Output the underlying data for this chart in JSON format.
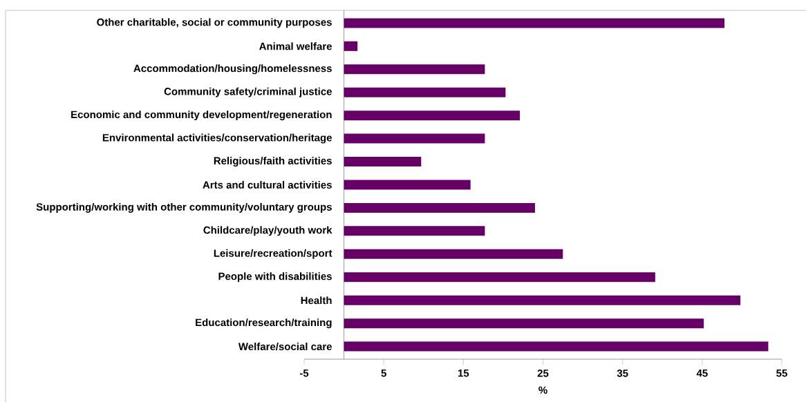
{
  "chart_data": {
    "type": "bar",
    "orientation": "horizontal",
    "xlabel": "%",
    "categories": [
      "Other charitable, social or community purposes",
      "Animal welfare",
      "Accommodation/housing/homelessness",
      "Community safety/criminal justice",
      "Economic and community development/regeneration",
      "Environmental activities/conservation/heritage",
      "Religious/faith activities",
      "Arts and cultural activities",
      "Supporting/working with other community/voluntary groups",
      "Childcare/play/youth work",
      "Leisure/recreation/sport",
      "People with disabilities",
      "Health",
      "Education/research/training",
      "Welfare/social care"
    ],
    "values": [
      47.8,
      1.7,
      17.7,
      20.3,
      22.1,
      17.7,
      9.7,
      15.9,
      24.0,
      17.7,
      27.5,
      39.1,
      49.8,
      45.2,
      53.3
    ],
    "color": "#660066",
    "xlim": [
      -5,
      55
    ],
    "xticks": [
      -5,
      5,
      15,
      25,
      35,
      45,
      55
    ]
  }
}
